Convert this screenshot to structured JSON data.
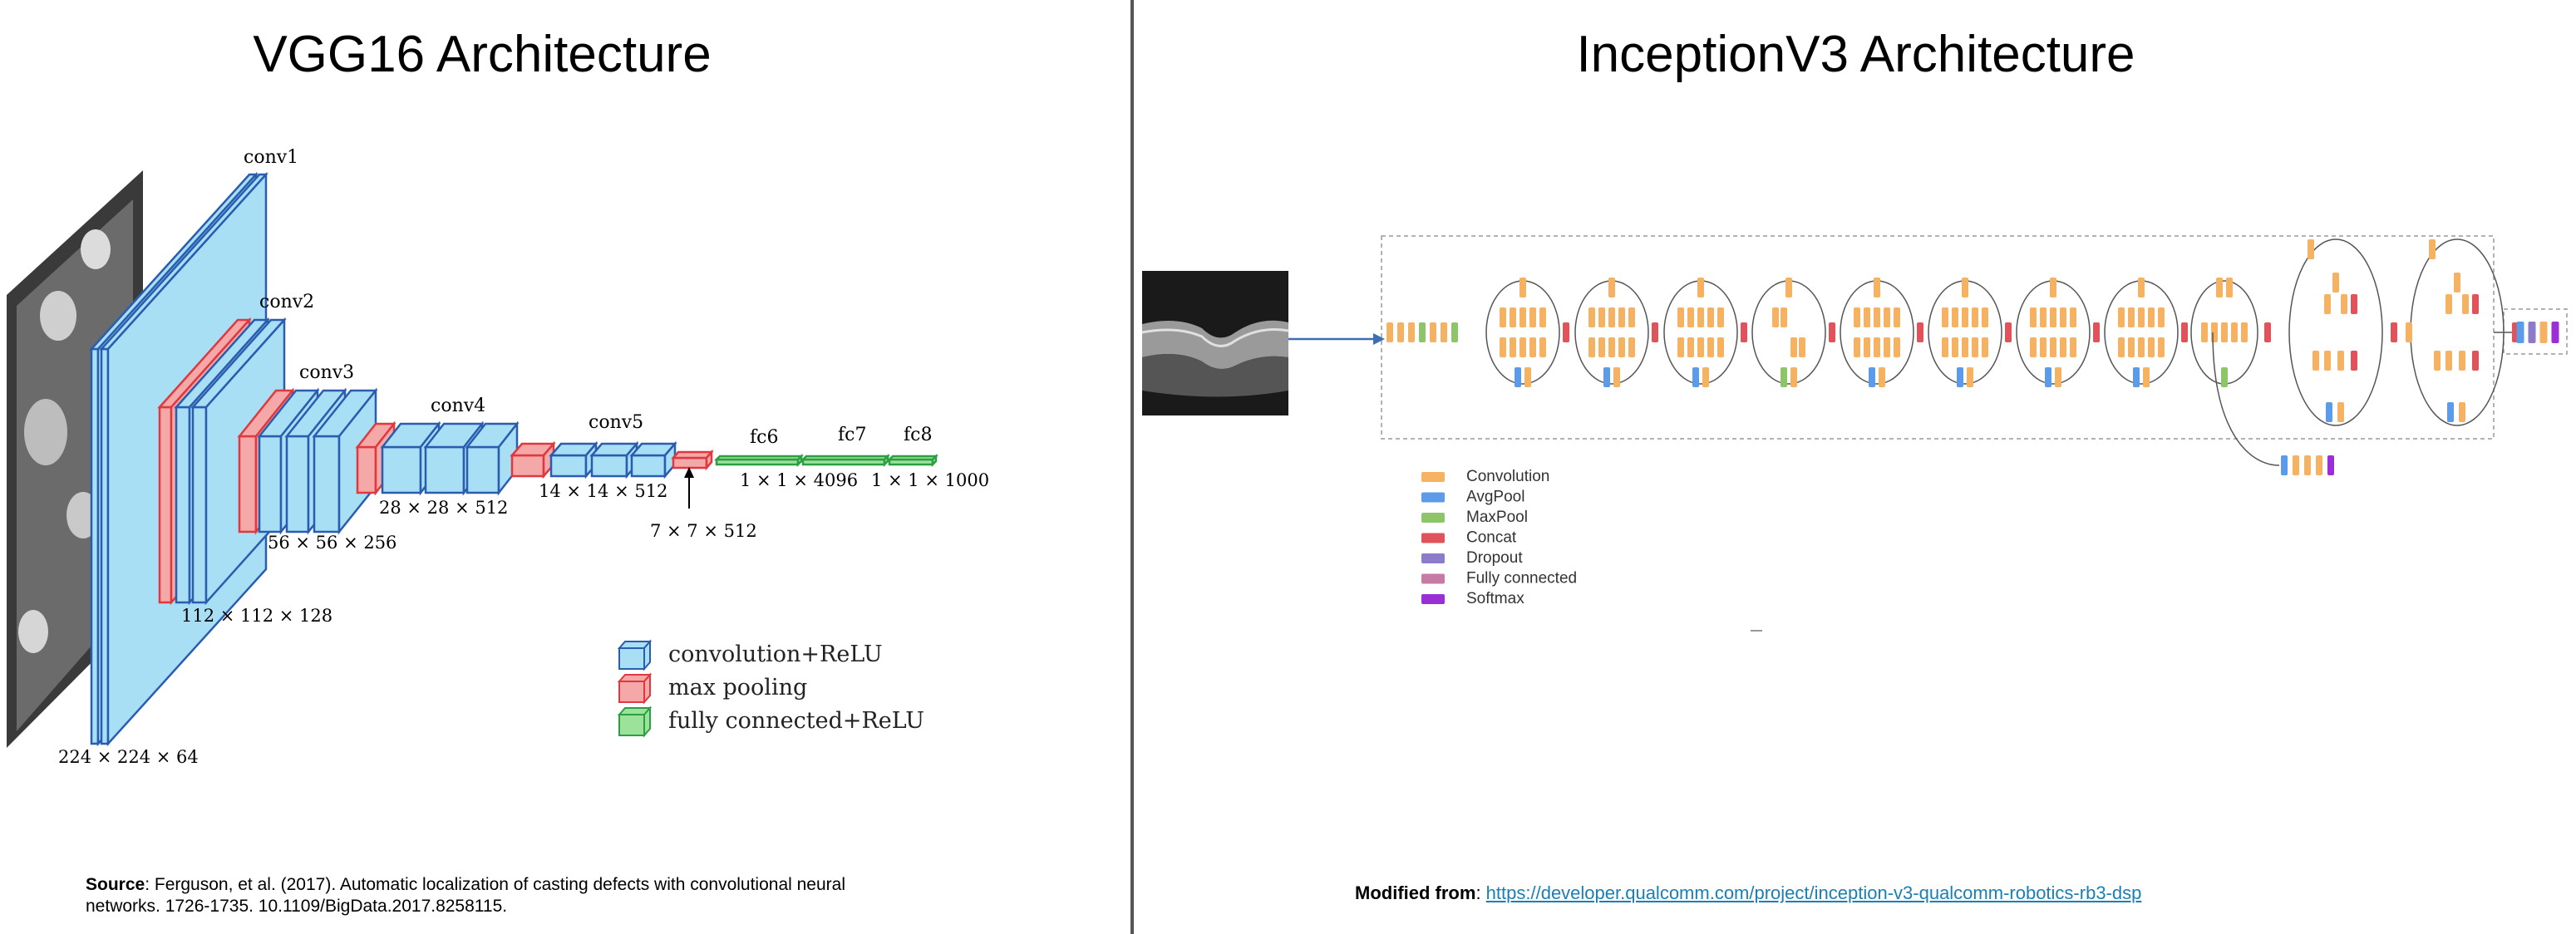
{
  "vgg": {
    "title": "VGG16 Architecture",
    "layer_labels": [
      "conv1",
      "conv2",
      "conv3",
      "conv4",
      "conv5",
      "fc6",
      "fc7",
      "fc8"
    ],
    "dims": [
      "224 × 224 × 64",
      "112 × 112 × 128",
      "56 × 56 × 256",
      "28 × 28 × 512",
      "14 × 14 × 512",
      "7 × 7 × 512",
      "1 × 1 × 4096",
      "1 × 1 × 1000"
    ],
    "legend": [
      "convolution+ReLU",
      "max pooling",
      "fully connected+ReLU"
    ],
    "colors": {
      "conv": "#a8dff5",
      "conv_stroke": "#2a5db0",
      "pool": "#f4a9a8",
      "pool_stroke": "#e0383e",
      "fc": "#9be39b",
      "fc_stroke": "#2e9e45"
    },
    "source_label": "Source",
    "source_text": ": Ferguson, et al. (2017). Automatic localization of casting defects with convolutional neural networks. 1726-1735. 10.1109/BigData.2017.8258115."
  },
  "inception": {
    "title": "InceptionV3 Architecture",
    "legend": [
      {
        "label": "Convolution",
        "color": "#f5b262"
      },
      {
        "label": "AvgPool",
        "color": "#5b9be8"
      },
      {
        "label": "MaxPool",
        "color": "#8cc56a"
      },
      {
        "label": "Concat",
        "color": "#e0535a"
      },
      {
        "label": "Dropout",
        "color": "#8b7bc8"
      },
      {
        "label": "Fully connected",
        "color": "#c67ba4"
      },
      {
        "label": "Softmax",
        "color": "#9a2fd8"
      }
    ],
    "modified_label": "Modified from",
    "modified_sep": ": ",
    "link": "https://developer.qualcomm.com/project/inception-v3-qualcomm-robotics-rb3-dsp"
  }
}
